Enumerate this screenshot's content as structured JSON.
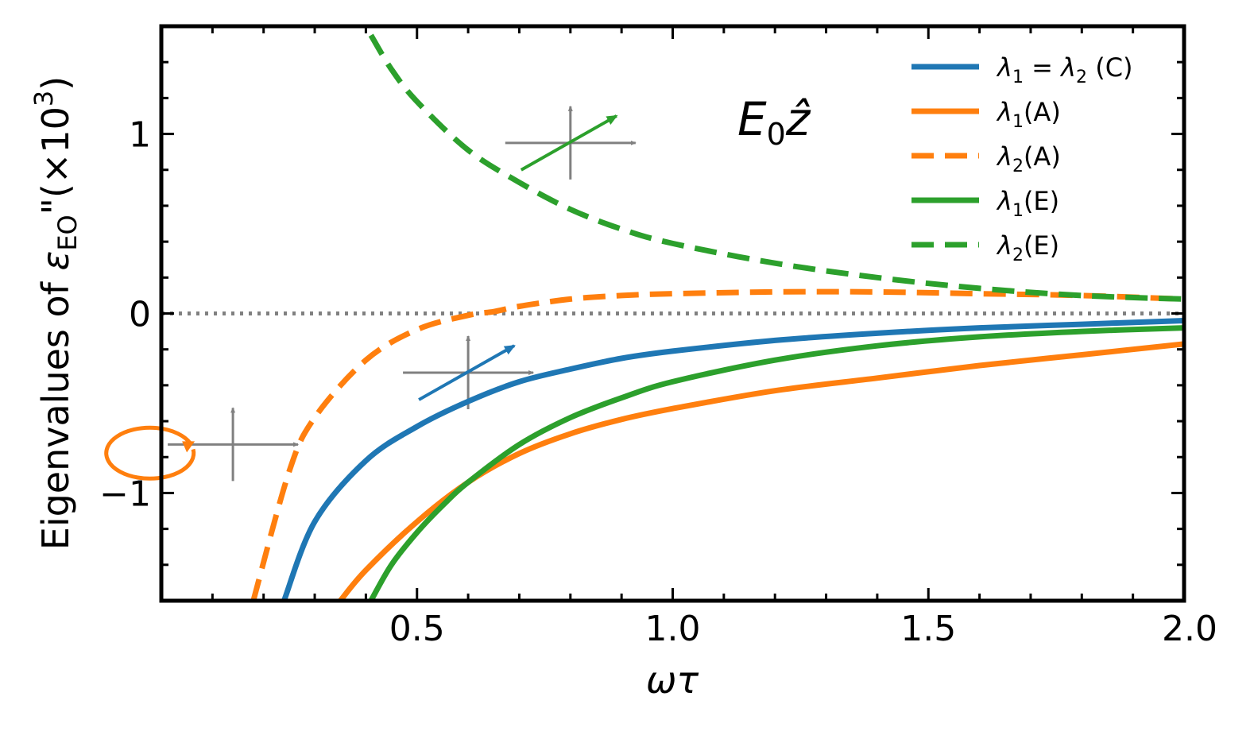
{
  "chart_data": {
    "type": "line",
    "title": "",
    "xlabel": "ωτ",
    "ylabel": "Eigenvalues of ε_EO\"(×10³)",
    "ylabel_parts": {
      "pre": "Eigenvalues of ",
      "sym": "ε",
      "sub": "EO",
      "post": "\"(×10",
      "sup": "3",
      "end": ")"
    },
    "xlim": [
      0.0,
      2.0
    ],
    "ylim": [
      -1.6,
      1.6
    ],
    "xticks": [
      0.5,
      1.0,
      1.5,
      2.0
    ],
    "xtick_labels": [
      "0.5",
      "1.0",
      "1.5",
      "2.0"
    ],
    "yticks": [
      -1,
      0,
      1
    ],
    "ytick_labels": [
      "−1",
      "0",
      "1"
    ],
    "annotation": {
      "text": "E",
      "sub": "0",
      "vec": "ẑ"
    },
    "zero_line": {
      "y": 0,
      "style": "dotted",
      "color": "#808080"
    },
    "series": [
      {
        "name": "λ1 = λ2 (C)",
        "label": {
          "sym": "λ",
          "sub": "1",
          "eq": " = ",
          "sym2": "λ",
          "sub2": "2",
          "tail": " (C)"
        },
        "color": "#1f77b4",
        "dash": false,
        "x": [
          0.24,
          0.3,
          0.4,
          0.5,
          0.6,
          0.7,
          0.8,
          0.9,
          1.0,
          1.2,
          1.4,
          1.6,
          1.8,
          2.0
        ],
        "y": [
          -1.6,
          -1.16,
          -0.82,
          -0.63,
          -0.49,
          -0.38,
          -0.31,
          -0.25,
          -0.21,
          -0.15,
          -0.11,
          -0.08,
          -0.06,
          -0.04
        ]
      },
      {
        "name": "λ1(A)",
        "label": {
          "sym": "λ",
          "sub": "1",
          "tail": "(A)"
        },
        "color": "#ff7f0e",
        "dash": false,
        "x": [
          0.35,
          0.4,
          0.5,
          0.6,
          0.7,
          0.8,
          0.9,
          1.0,
          1.2,
          1.4,
          1.6,
          1.8,
          2.0
        ],
        "y": [
          -1.6,
          -1.43,
          -1.16,
          -0.94,
          -0.78,
          -0.67,
          -0.59,
          -0.53,
          -0.43,
          -0.36,
          -0.29,
          -0.23,
          -0.17
        ]
      },
      {
        "name": "λ2(A)",
        "label": {
          "sym": "λ",
          "sub": "2",
          "tail": "(A)"
        },
        "color": "#ff7f0e",
        "dash": true,
        "x": [
          0.18,
          0.25,
          0.3,
          0.4,
          0.5,
          0.6,
          0.65,
          0.7,
          0.8,
          0.9,
          1.0,
          1.2,
          1.4,
          1.6,
          1.8,
          2.0
        ],
        "y": [
          -1.6,
          -0.88,
          -0.58,
          -0.26,
          -0.09,
          -0.01,
          0.01,
          0.04,
          0.08,
          0.1,
          0.11,
          0.12,
          0.12,
          0.11,
          0.1,
          0.08
        ]
      },
      {
        "name": "λ1(E)",
        "label": {
          "sym": "λ",
          "sub": "1",
          "tail": "(E)"
        },
        "color": "#2ca02c",
        "dash": false,
        "x": [
          0.41,
          0.45,
          0.5,
          0.55,
          0.6,
          0.7,
          0.8,
          0.9,
          1.0,
          1.2,
          1.4,
          1.6,
          1.8,
          2.0
        ],
        "y": [
          -1.6,
          -1.4,
          -1.22,
          -1.07,
          -0.94,
          -0.73,
          -0.58,
          -0.47,
          -0.38,
          -0.26,
          -0.18,
          -0.13,
          -0.1,
          -0.08
        ]
      },
      {
        "name": "λ2(E)",
        "label": {
          "sym": "λ",
          "sub": "2",
          "tail": "(E)"
        },
        "color": "#2ca02c",
        "dash": true,
        "x": [
          0.41,
          0.45,
          0.5,
          0.6,
          0.7,
          0.8,
          0.9,
          1.0,
          1.2,
          1.4,
          1.6,
          1.8,
          2.0
        ],
        "y": [
          1.55,
          1.36,
          1.18,
          0.91,
          0.73,
          0.58,
          0.47,
          0.39,
          0.28,
          0.2,
          0.14,
          0.1,
          0.08
        ]
      }
    ],
    "legend": {
      "placement": "top-right"
    },
    "insets": [
      {
        "name": "circular-polarization-inset",
        "cx": 0.14,
        "cy": -0.73,
        "color": "#ff7f0e",
        "type": "circle"
      },
      {
        "name": "linear-polarization-inset-blue",
        "cx": 0.6,
        "cy": -0.33,
        "color": "#1f77b4",
        "type": "arrow"
      },
      {
        "name": "linear-polarization-inset-green",
        "cx": 0.8,
        "cy": 0.95,
        "color": "#2ca02c",
        "type": "arrow"
      }
    ]
  }
}
